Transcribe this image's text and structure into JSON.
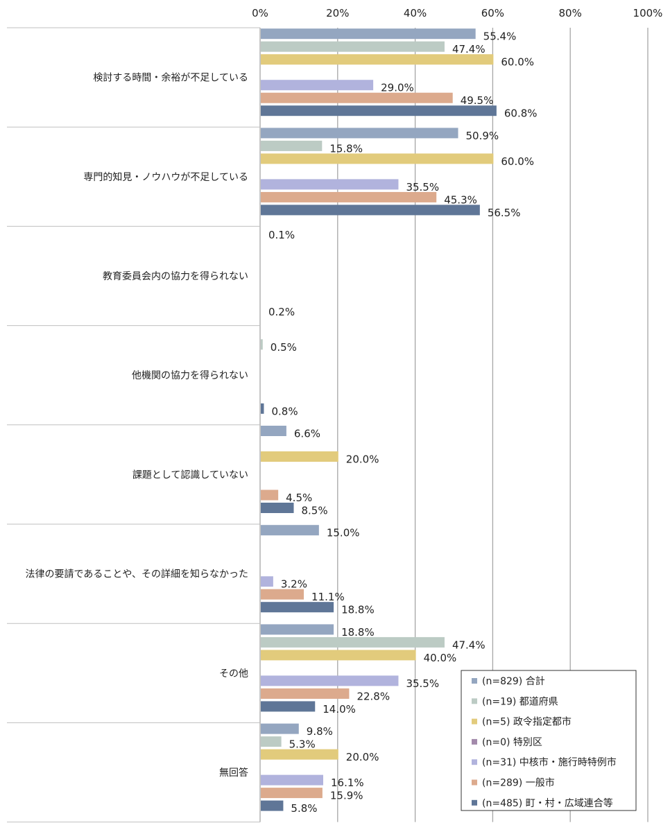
{
  "chart_data": {
    "type": "bar",
    "orientation": "horizontal",
    "xlim": [
      0,
      100
    ],
    "ticks": [
      "0%",
      "20%",
      "40%",
      "60%",
      "80%",
      "100%"
    ],
    "tick_values": [
      0,
      20,
      40,
      60,
      80,
      100
    ],
    "categories": [
      "検討する時間・余裕が不足している",
      "専門的知見・ノウハウが不足している",
      "教育委員会内の協力を得られない",
      "他機関の協力を得られない",
      "課題として認識していない",
      "法律の要請であることや、その詳細を知らなかった",
      "その他",
      "無回答"
    ],
    "series": [
      {
        "name": "(n=829) 合計",
        "color": "#94a6c0",
        "values": [
          55.4,
          50.9,
          null,
          null,
          6.6,
          15.0,
          18.8,
          9.8
        ],
        "labels": [
          "55.4%",
          "50.9%",
          "",
          "",
          "6.6%",
          "15.0%",
          "18.8%",
          "9.8%"
        ]
      },
      {
        "name": "(n=19) 都道府県",
        "color": "#bccbc4",
        "values": [
          47.4,
          15.8,
          null,
          0.5,
          null,
          null,
          47.4,
          5.3
        ],
        "labels": [
          "47.4%",
          "15.8%",
          "",
          "0.5%",
          "",
          "",
          "47.4%",
          "5.3%"
        ]
      },
      {
        "name": "(n=5) 政令指定都市",
        "color": "#e2cb7c",
        "values": [
          60.0,
          60.0,
          null,
          null,
          20.0,
          null,
          40.0,
          20.0
        ],
        "labels": [
          "60.0%",
          "60.0%",
          "",
          "",
          "20.0%",
          "",
          "40.0%",
          "20.0%"
        ]
      },
      {
        "name": "(n=0) 特別区",
        "color": "#a38aab",
        "values": [
          null,
          null,
          null,
          null,
          null,
          null,
          null,
          null
        ],
        "labels": [
          "",
          "",
          "",
          "",
          "",
          "",
          "",
          ""
        ]
      },
      {
        "name": "(n=31) 中核市・施行時特例市",
        "color": "#b1b3dd",
        "values": [
          29.0,
          35.5,
          null,
          null,
          null,
          3.2,
          35.5,
          16.1
        ],
        "labels": [
          "29.0%",
          "35.5%",
          "",
          "",
          "",
          "3.2%",
          "35.5%",
          "16.1%"
        ]
      },
      {
        "name": "(n=289) 一般市",
        "color": "#dcaa8d",
        "values": [
          49.5,
          45.3,
          null,
          null,
          4.5,
          11.1,
          22.8,
          15.9
        ],
        "labels": [
          "49.5%",
          "45.3%",
          "",
          "",
          "4.5%",
          "11.1%",
          "22.8%",
          "15.9%"
        ]
      },
      {
        "name": "(n=485) 町・村・広域連合等",
        "color": "#5f7697",
        "values": [
          60.8,
          56.5,
          null,
          0.8,
          8.5,
          18.8,
          14.0,
          5.8
        ],
        "labels": [
          "60.8%",
          "56.5%",
          "",
          "0.8%",
          "8.5%",
          "18.8%",
          "14.0%",
          "5.8%"
        ]
      }
    ],
    "extra_labels": [
      {
        "category_index": 2,
        "series_index": 0,
        "text": "0.1%"
      },
      {
        "category_index": 2,
        "series_index": 6,
        "text": "0.2%"
      }
    ],
    "legend_position": "bottom-right",
    "grid": true
  }
}
